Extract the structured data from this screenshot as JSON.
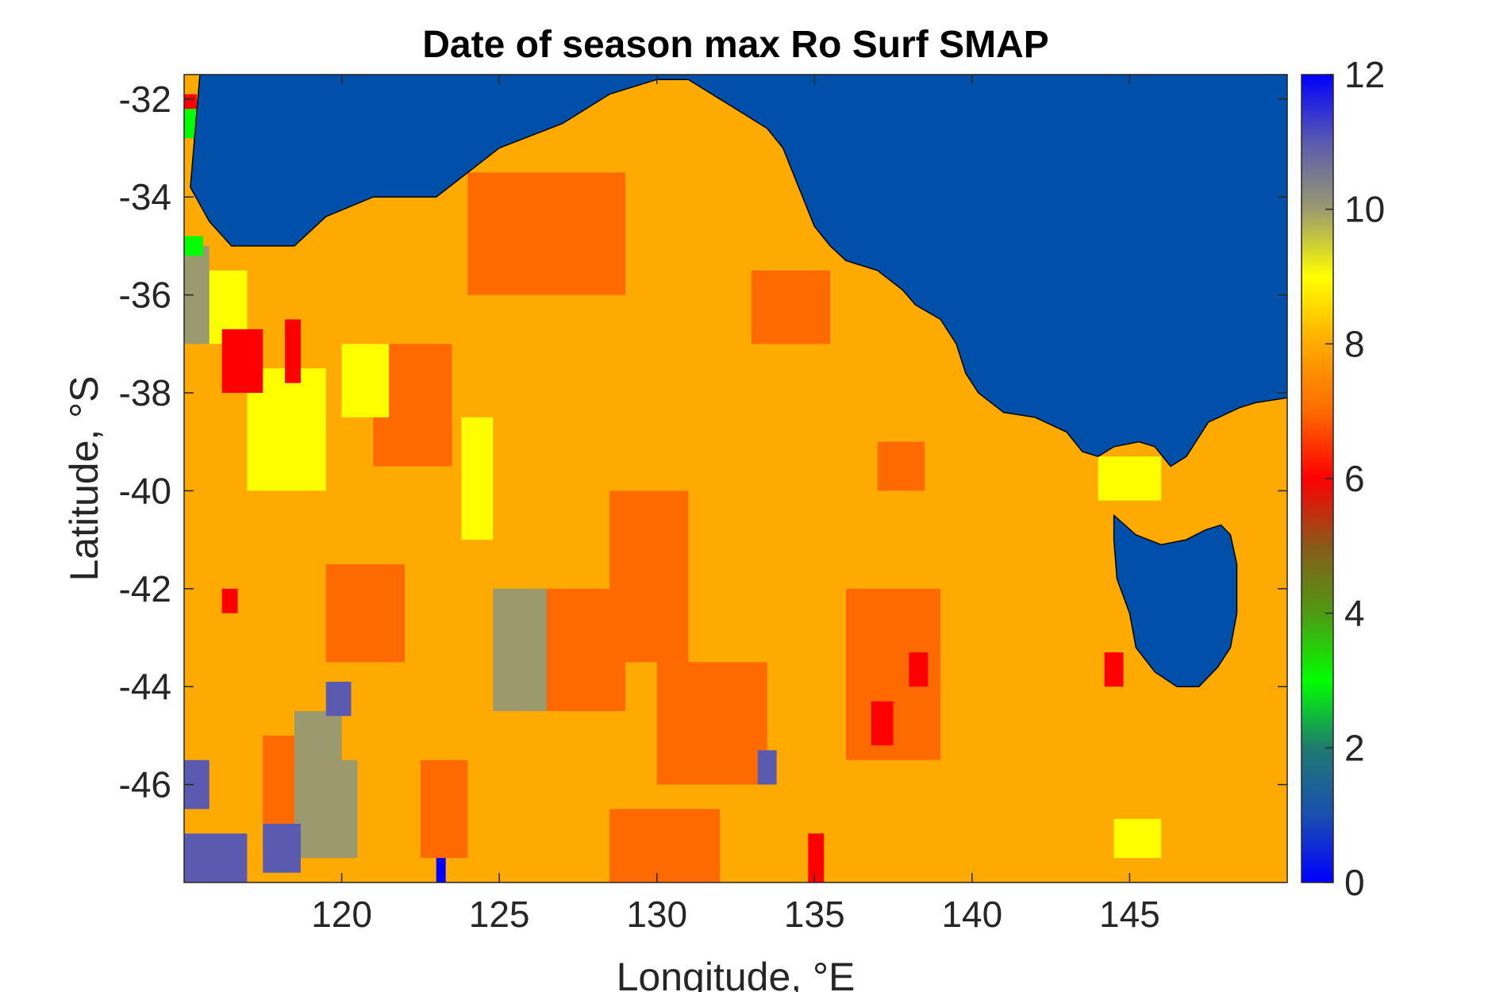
{
  "chart_data": {
    "type": "heatmap",
    "title": "Date of season max Ro Surf SMAP",
    "xlabel": "Longitude, °E",
    "ylabel": "Latitude, °S",
    "xlim": [
      115,
      150
    ],
    "ylim": [
      -48,
      -31.5
    ],
    "xticks": [
      120,
      125,
      130,
      135,
      140,
      145
    ],
    "yticks": [
      -32,
      -34,
      -36,
      -38,
      -40,
      -42,
      -44,
      -46
    ],
    "colorbar": {
      "range": [
        0,
        12
      ],
      "ticks": [
        0,
        2,
        4,
        6,
        8,
        10,
        12
      ],
      "stops": [
        {
          "value": 0,
          "color": "#0000ff"
        },
        {
          "value": 1,
          "color": "#1a4fb0"
        },
        {
          "value": 2,
          "color": "#1f7a70"
        },
        {
          "value": 3,
          "color": "#00ff00"
        },
        {
          "value": 4,
          "color": "#4f9a14"
        },
        {
          "value": 5,
          "color": "#8a5a1a"
        },
        {
          "value": 6,
          "color": "#ff0000"
        },
        {
          "value": 7,
          "color": "#ff6a00"
        },
        {
          "value": 8,
          "color": "#ffaa00"
        },
        {
          "value": 9,
          "color": "#ffff00"
        },
        {
          "value": 10,
          "color": "#9a9a6e"
        },
        {
          "value": 11,
          "color": "#5a5ab0"
        },
        {
          "value": 12,
          "color": "#0000ff"
        }
      ]
    },
    "colors": {
      "ocean_fill": "#0050aa",
      "background_value_color": "#ffaa00"
    },
    "regions": [
      {
        "lon": [
          115,
          150
        ],
        "lat": [
          -48,
          -31.5
        ],
        "value": 8
      },
      {
        "lon": [
          124,
          129
        ],
        "lat": [
          -36,
          -33.5
        ],
        "value": 7
      },
      {
        "lon": [
          128.5,
          131
        ],
        "lat": [
          -43.5,
          -40
        ],
        "value": 7
      },
      {
        "lon": [
          126,
          129
        ],
        "lat": [
          -44.5,
          -42
        ],
        "value": 7
      },
      {
        "lon": [
          130,
          133.5
        ],
        "lat": [
          -46,
          -43.5
        ],
        "value": 7
      },
      {
        "lon": [
          119.5,
          122
        ],
        "lat": [
          -43.5,
          -41.5
        ],
        "value": 7
      },
      {
        "lon": [
          136,
          139
        ],
        "lat": [
          -45.5,
          -42
        ],
        "value": 7
      },
      {
        "lon": [
          121,
          123.5
        ],
        "lat": [
          -39.5,
          -37
        ],
        "value": 7
      },
      {
        "lon": [
          117.5,
          120
        ],
        "lat": [
          -47.5,
          -45
        ],
        "value": 7
      },
      {
        "lon": [
          128.5,
          132
        ],
        "lat": [
          -48,
          -46.5
        ],
        "value": 7
      },
      {
        "lon": [
          133,
          135.5
        ],
        "lat": [
          -37,
          -35.5
        ],
        "value": 7
      },
      {
        "lon": [
          137,
          138.5
        ],
        "lat": [
          -40,
          -39
        ],
        "value": 7
      },
      {
        "lon": [
          122.5,
          124
        ],
        "lat": [
          -47.5,
          -45.5
        ],
        "value": 7
      },
      {
        "lon": [
          117,
          119.5
        ],
        "lat": [
          -40,
          -37.5
        ],
        "value": 9
      },
      {
        "lon": [
          120,
          121.5
        ],
        "lat": [
          -38.5,
          -37
        ],
        "value": 9
      },
      {
        "lon": [
          123.8,
          124.8
        ],
        "lat": [
          -41,
          -38.5
        ],
        "value": 9
      },
      {
        "lon": [
          115.5,
          117
        ],
        "lat": [
          -37,
          -35.5
        ],
        "value": 9
      },
      {
        "lon": [
          144,
          146
        ],
        "lat": [
          -40.2,
          -39.3
        ],
        "value": 9
      },
      {
        "lon": [
          144.5,
          146
        ],
        "lat": [
          -47.5,
          -46.7
        ],
        "value": 9
      },
      {
        "lon": [
          124.8,
          126.5
        ],
        "lat": [
          -44.5,
          -42
        ],
        "value": 10
      },
      {
        "lon": [
          118.5,
          120.5
        ],
        "lat": [
          -47.5,
          -45.5
        ],
        "value": 10
      },
      {
        "lon": [
          115,
          115.8
        ],
        "lat": [
          -37,
          -35
        ],
        "value": 10
      },
      {
        "lon": [
          118.5,
          120
        ],
        "lat": [
          -45.5,
          -44.5
        ],
        "value": 10
      },
      {
        "lon": [
          115,
          117
        ],
        "lat": [
          -48,
          -47
        ],
        "value": 11
      },
      {
        "lon": [
          117.5,
          118.7
        ],
        "lat": [
          -47.8,
          -46.8
        ],
        "value": 11
      },
      {
        "lon": [
          119.5,
          120.3
        ],
        "lat": [
          -44.6,
          -43.9
        ],
        "value": 11
      },
      {
        "lon": [
          133.2,
          133.8
        ],
        "lat": [
          -46,
          -45.3
        ],
        "value": 11
      },
      {
        "lon": [
          115,
          115.8
        ],
        "lat": [
          -46.5,
          -45.5
        ],
        "value": 11
      },
      {
        "lon": [
          116.2,
          117.5
        ],
        "lat": [
          -38,
          -36.7
        ],
        "value": 6
      },
      {
        "lon": [
          118.2,
          118.7
        ],
        "lat": [
          -37.8,
          -36.5
        ],
        "value": 6
      },
      {
        "lon": [
          136.8,
          137.5
        ],
        "lat": [
          -45.2,
          -44.3
        ],
        "value": 6
      },
      {
        "lon": [
          116.2,
          116.7
        ],
        "lat": [
          -42.5,
          -42
        ],
        "value": 6
      },
      {
        "lon": [
          134.8,
          135.3
        ],
        "lat": [
          -48,
          -47
        ],
        "value": 6
      },
      {
        "lon": [
          138,
          138.6
        ],
        "lat": [
          -44,
          -43.3
        ],
        "value": 6
      },
      {
        "lon": [
          144.2,
          144.8
        ],
        "lat": [
          -44,
          -43.3
        ],
        "value": 6
      },
      {
        "lon": [
          123,
          123.3
        ],
        "lat": [
          -48,
          -47.5
        ],
        "value": 0
      },
      {
        "lon": [
          115,
          115.4
        ],
        "lat": [
          -32.8,
          -32.2
        ],
        "value": 3
      },
      {
        "lon": [
          115,
          115.4
        ],
        "lat": [
          -32.2,
          -31.9
        ],
        "value": 6
      },
      {
        "lon": [
          115,
          115.6
        ],
        "lat": [
          -35.2,
          -34.8
        ],
        "value": 3
      }
    ],
    "ocean_polygon": [
      [
        115.5,
        -31.5
      ],
      [
        115.2,
        -33.8
      ],
      [
        115.8,
        -34.5
      ],
      [
        116.5,
        -35
      ],
      [
        118.5,
        -35
      ],
      [
        119.5,
        -34.4
      ],
      [
        121,
        -34
      ],
      [
        123,
        -34
      ],
      [
        124,
        -33.5
      ],
      [
        125,
        -33
      ],
      [
        127,
        -32.5
      ],
      [
        128.5,
        -31.9
      ],
      [
        130,
        -31.6
      ],
      [
        131,
        -31.6
      ],
      [
        132,
        -32
      ],
      [
        133,
        -32.4
      ],
      [
        133.5,
        -32.6
      ],
      [
        134,
        -33
      ],
      [
        134.5,
        -33.8
      ],
      [
        135,
        -34.6
      ],
      [
        135.5,
        -35
      ],
      [
        136,
        -35.3
      ],
      [
        137,
        -35.5
      ],
      [
        137.8,
        -35.9
      ],
      [
        138.2,
        -36.2
      ],
      [
        139,
        -36.5
      ],
      [
        139.5,
        -37
      ],
      [
        139.8,
        -37.6
      ],
      [
        140.2,
        -38
      ],
      [
        141,
        -38.4
      ],
      [
        142,
        -38.5
      ],
      [
        143,
        -38.8
      ],
      [
        143.5,
        -39.2
      ],
      [
        144,
        -39.3
      ],
      [
        144.5,
        -39.1
      ],
      [
        145.3,
        -39
      ],
      [
        145.8,
        -39.1
      ],
      [
        146.3,
        -39.5
      ],
      [
        146.8,
        -39.3
      ],
      [
        147.5,
        -38.6
      ],
      [
        148.5,
        -38.3
      ],
      [
        149,
        -38.2
      ],
      [
        150,
        -38.1
      ],
      [
        150,
        -31.5
      ]
    ],
    "tasmania_polygon": [
      [
        144.5,
        -40.5
      ],
      [
        145.2,
        -40.9
      ],
      [
        146,
        -41.1
      ],
      [
        146.8,
        -41
      ],
      [
        147.4,
        -40.8
      ],
      [
        147.9,
        -40.7
      ],
      [
        148.2,
        -40.9
      ],
      [
        148.4,
        -41.5
      ],
      [
        148.4,
        -42.5
      ],
      [
        148.2,
        -43.2
      ],
      [
        147.8,
        -43.6
      ],
      [
        147.2,
        -44
      ],
      [
        146.5,
        -44
      ],
      [
        145.8,
        -43.7
      ],
      [
        145.2,
        -43.2
      ],
      [
        145,
        -42.5
      ],
      [
        144.6,
        -41.8
      ],
      [
        144.5,
        -41
      ]
    ]
  }
}
